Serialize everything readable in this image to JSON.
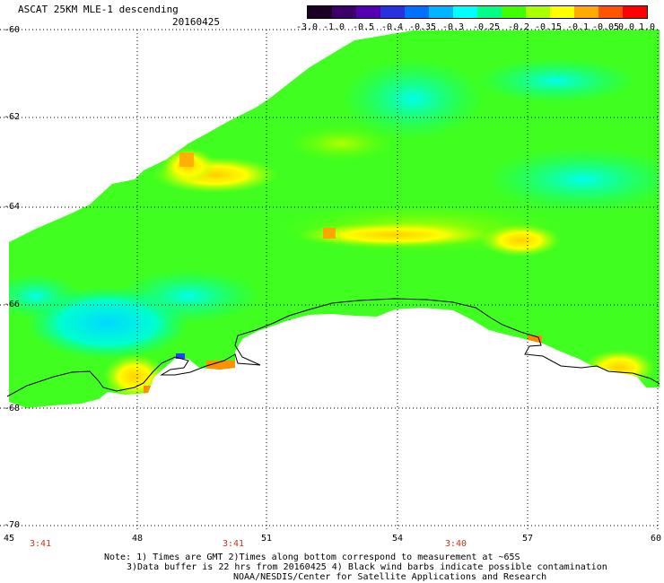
{
  "header": {
    "title": "ASCAT 25KM MLE-1 descending",
    "date": "20160425"
  },
  "colorbar": {
    "labels": [
      "-3.0",
      "-1.0",
      "-0.5",
      "-0.4",
      "-0.35",
      "-0.3",
      "-0.25",
      "-0.2",
      "-0.15",
      "-0.1",
      "-0.05",
      "0.0",
      "1.0"
    ],
    "colors": [
      "#1a0022",
      "#3a0068",
      "#5500b0",
      "#2a30e0",
      "#0070ff",
      "#00b4ff",
      "#00ffff",
      "#00ff88",
      "#40ff00",
      "#aaff00",
      "#ffff00",
      "#ffaa00",
      "#ff5500",
      "#ff0000"
    ]
  },
  "axes": {
    "lat_labels": [
      "-60",
      "-62",
      "-64",
      "-66",
      "-68",
      "-70"
    ],
    "lon_labels": [
      "45",
      "48",
      "51",
      "54",
      "57",
      "60"
    ],
    "times": [
      "3:41",
      "3:41",
      "3:40"
    ]
  },
  "notes": {
    "line1": "Note: 1) Times are GMT 2)Times along bottom correspond to measurement at ~65S",
    "line2": "3)Data buffer is 22 hrs from 20160425 4) Black wind barbs indicate possible contamination",
    "line3": "NOAA/NESDIS/Center for Satellite Applications and Research"
  }
}
